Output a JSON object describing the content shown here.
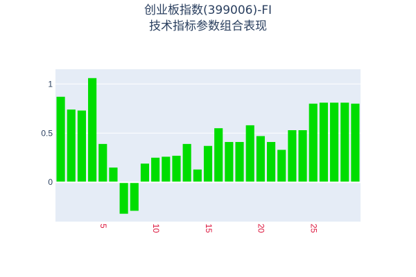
{
  "chart_data": {
    "type": "bar",
    "title_lines": [
      "创业板指数(399006)-FI",
      "技术指标参数组合表现"
    ],
    "x": [
      1,
      2,
      3,
      4,
      5,
      6,
      7,
      8,
      9,
      10,
      11,
      12,
      13,
      14,
      15,
      16,
      17,
      18,
      19,
      20,
      21,
      22,
      23,
      24,
      25,
      26,
      27,
      28,
      29
    ],
    "values": [
      0.87,
      0.74,
      0.73,
      1.06,
      0.39,
      0.15,
      -0.32,
      -0.29,
      0.19,
      0.25,
      0.26,
      0.27,
      0.39,
      0.13,
      0.37,
      0.55,
      0.41,
      0.41,
      0.58,
      0.47,
      0.41,
      0.33,
      0.53,
      0.53,
      0.8,
      0.81,
      0.81,
      0.81,
      0.8
    ],
    "x_ticks": [
      5,
      10,
      15,
      20,
      25
    ],
    "y_ticks": [
      0,
      0.5,
      1
    ],
    "xlim": [
      0.5,
      29.5
    ],
    "ylim": [
      -0.4,
      1.15
    ],
    "xlabel": "",
    "ylabel": "",
    "grid": true,
    "legend": false,
    "colors": {
      "bar": "#00dd00",
      "plot_background": "#e5ecf6",
      "grid": "#ffffff",
      "x_tick_label": "#dc143c",
      "y_tick_label": "#2a3f5f",
      "title": "#2a3f5f"
    }
  }
}
